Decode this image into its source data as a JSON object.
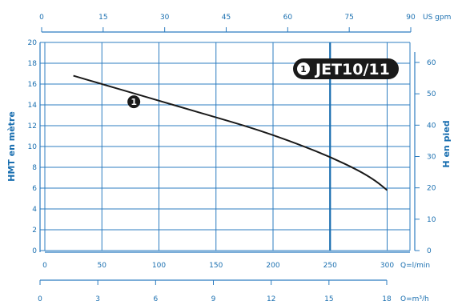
{
  "chart_data": {
    "type": "line",
    "legend_label": "JET10/11",
    "curve_marker": "1",
    "series": [
      {
        "name": "JET10/11",
        "x": [
          25,
          50,
          75,
          100,
          125,
          150,
          175,
          200,
          225,
          250,
          275,
          290,
          300
        ],
        "y": [
          16.8,
          16.0,
          15.2,
          14.4,
          13.6,
          12.8,
          12.0,
          11.1,
          10.1,
          9.0,
          7.7,
          6.7,
          5.8
        ]
      }
    ],
    "axes": {
      "bottom": {
        "label": "Q=l/min",
        "min": 0,
        "max": 320,
        "ticks": [
          0,
          50,
          100,
          150,
          200,
          250,
          300
        ]
      },
      "top": {
        "label": "US gpm",
        "ticks": [
          0,
          15,
          30,
          45,
          60,
          75,
          90
        ]
      },
      "bottom2": {
        "label": "Q=m³/h",
        "ticks": [
          0,
          3,
          6,
          9,
          12,
          15,
          18
        ]
      },
      "left": {
        "label": "HMT en mètre",
        "min": 0,
        "max": 20,
        "ticks": [
          0,
          2,
          4,
          6,
          8,
          10,
          12,
          14,
          16,
          18,
          20
        ]
      },
      "right": {
        "label": "H en pied",
        "ticks": [
          0,
          10,
          20,
          30,
          40,
          50,
          60
        ]
      }
    },
    "reference_line_x": 250,
    "colors": {
      "axis": "#1a6fb0",
      "grid": "#2c7cc0",
      "curve": "#1a1a1a",
      "badge": "#1a1a1a"
    }
  }
}
